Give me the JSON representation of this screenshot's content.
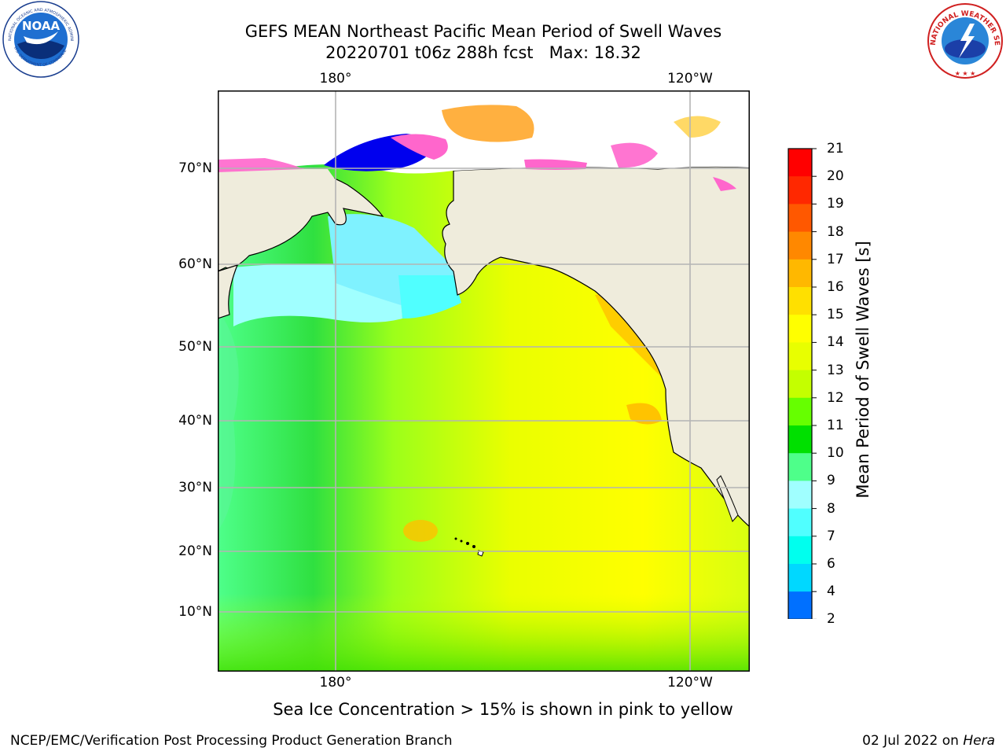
{
  "header": {
    "title_line1": "GEFS MEAN Northeast Pacific Mean Period of Swell Waves",
    "title_line2": "20220701 t06z 288h fcst   Max: 18.32"
  },
  "logos": {
    "left_text": "NOAA",
    "left_ring_top": "NATIONAL OCEANIC AND ATMOSPHERIC ADMINISTRATION",
    "left_ring_bottom": "U.S. DEPARTMENT OF COMMERCE",
    "right_ring": "NATIONAL WEATHER SERVICE"
  },
  "map": {
    "lon_labels": [
      "180°",
      "120°W"
    ],
    "lat_labels": [
      "70°N",
      "60°N",
      "50°N",
      "40°N",
      "30°N",
      "20°N",
      "10°N"
    ],
    "land_color": "#efecdc",
    "grid_color": "#b4b4b4"
  },
  "colorbar": {
    "title": "Mean Period of Swell Waves [s]",
    "ticks": [
      "2",
      "4",
      "6",
      "7",
      "8",
      "9",
      "10",
      "11",
      "12",
      "13",
      "14",
      "15",
      "16",
      "17",
      "18",
      "19",
      "20",
      "21"
    ],
    "colors": [
      "#0000ee",
      "#0070ff",
      "#00d8ff",
      "#00ffee",
      "#50ffff",
      "#a0ffff",
      "#4eff8a",
      "#00e000",
      "#66ff00",
      "#c4ff00",
      "#e8ff00",
      "#ffff00",
      "#ffe000",
      "#ffb800",
      "#ff8800",
      "#ff5800",
      "#ff2800",
      "#ff0000"
    ]
  },
  "note": "Sea Ice Concentration > 15% is shown in pink to yellow",
  "footer": {
    "left": "NCEP/EMC/Verification Post Processing Product Generation Branch",
    "right_date": "02 Jul 2022 on ",
    "right_host": "Hera"
  }
}
